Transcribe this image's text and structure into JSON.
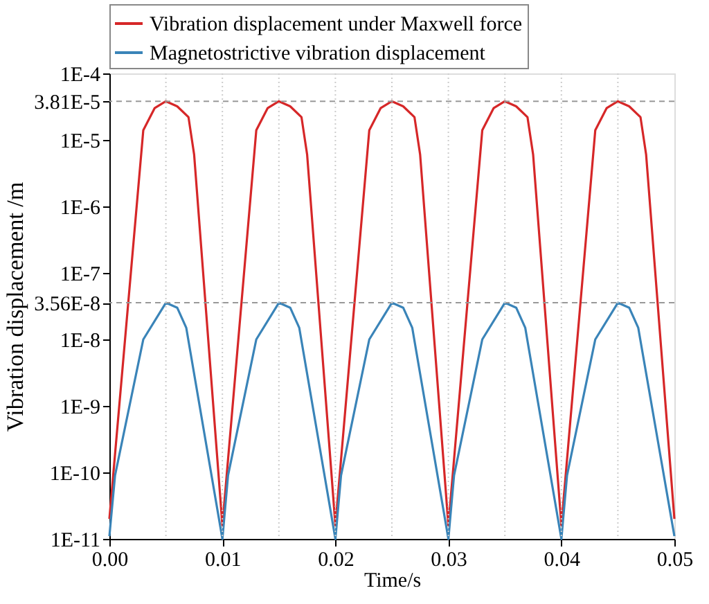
{
  "chart_data": {
    "type": "line",
    "xlabel": "Time/s",
    "ylabel": "Vibration displacement /m",
    "log": "y",
    "grid": false,
    "legend": "top",
    "line_style": "solid",
    "marker": "none",
    "x": [
      0,
      0.003,
      0.004,
      0.005,
      0.006,
      0.007,
      0.0075,
      0.01,
      0.013,
      0.014,
      0.015,
      0.016,
      0.017,
      0.0175,
      0.02,
      0.023,
      0.024,
      0.025,
      0.026,
      0.027,
      0.0275,
      0.03,
      0.033,
      0.034,
      0.035,
      0.036,
      0.037,
      0.0375,
      0.04,
      0.043,
      0.044,
      0.045,
      0.046,
      0.047,
      0.0475,
      0.05
    ],
    "series": [
      {
        "name": "Vibration displacement under Maxwell force",
        "color": "#d62728",
        "values": [
          2e-11,
          1.4e-05,
          3e-05,
          3.81e-05,
          3.2e-05,
          2.2e-05,
          6e-06,
          1.6e-11,
          1.4e-05,
          3e-05,
          3.81e-05,
          3.2e-05,
          2.2e-05,
          6e-06,
          1.6e-11,
          1.4e-05,
          3e-05,
          3.81e-05,
          3.2e-05,
          2.2e-05,
          6e-06,
          1.6e-11,
          1.4e-05,
          3e-05,
          3.81e-05,
          3.2e-05,
          2.2e-05,
          6e-06,
          1.6e-11,
          1.4e-05,
          3e-05,
          3.81e-05,
          3.2e-05,
          2.2e-05,
          6e-06,
          2e-11
        ]
      },
      {
        "name": "Magnetostrictive vibration displacement",
        "color": "#3a84b8",
        "x": [
          0,
          0.0005,
          0.003,
          0.005,
          0.006,
          0.0068,
          0.01,
          0.0105,
          0.013,
          0.015,
          0.016,
          0.0168,
          0.02,
          0.0205,
          0.023,
          0.025,
          0.026,
          0.0268,
          0.03,
          0.0305,
          0.033,
          0.035,
          0.036,
          0.0368,
          0.04,
          0.0405,
          0.043,
          0.045,
          0.046,
          0.0468,
          0.05
        ],
        "values": [
          1.1e-11,
          9e-11,
          1e-08,
          3.56e-08,
          3e-08,
          1.5e-08,
          1e-11,
          9e-11,
          1e-08,
          3.56e-08,
          3e-08,
          1.5e-08,
          1e-11,
          9e-11,
          1e-08,
          3.56e-08,
          3e-08,
          1.5e-08,
          1e-11,
          9e-11,
          1e-08,
          3.56e-08,
          3e-08,
          1.5e-08,
          1e-11,
          9e-11,
          1e-08,
          3.56e-08,
          3e-08,
          1.5e-08,
          1.1e-11
        ]
      }
    ],
    "xlim": [
      0,
      0.05
    ],
    "xticks": [
      {
        "value": 0,
        "label": "0.00"
      },
      {
        "value": 0.01,
        "label": "0.01"
      },
      {
        "value": 0.02,
        "label": "0.02"
      },
      {
        "value": 0.03,
        "label": "0.03"
      },
      {
        "value": 0.04,
        "label": "0.04"
      },
      {
        "value": 0.05,
        "label": "0.05"
      }
    ],
    "ylim": [
      1e-11,
      0.0001
    ],
    "yticks": [
      {
        "value": 0.0001,
        "label": "1E-4"
      },
      {
        "value": 3.81e-05,
        "label": "3.81E-5"
      },
      {
        "value": 1e-05,
        "label": "1E-5"
      },
      {
        "value": 1e-06,
        "label": "1E-6"
      },
      {
        "value": 1e-07,
        "label": "1E-7"
      },
      {
        "value": 3.56e-08,
        "label": "3.56E-8"
      },
      {
        "value": 1e-08,
        "label": "1E-8"
      },
      {
        "value": 1e-09,
        "label": "1E-9"
      },
      {
        "value": 1e-10,
        "label": "1E-10"
      },
      {
        "value": 1e-11,
        "label": "1E-11"
      }
    ],
    "ref_lines": [
      {
        "axis": "y",
        "value": 3.81e-05,
        "line_style": "dashed",
        "color": "#999999"
      },
      {
        "axis": "y",
        "value": 3.56e-08,
        "line_style": "dashed",
        "color": "#999999"
      },
      {
        "axis": "x",
        "value": 0.005,
        "line_style": "dotted",
        "color": "#cccccc"
      },
      {
        "axis": "x",
        "value": 0.01,
        "line_style": "dotted",
        "color": "#cccccc"
      },
      {
        "axis": "x",
        "value": 0.015,
        "line_style": "dotted",
        "color": "#cccccc"
      },
      {
        "axis": "x",
        "value": 0.02,
        "line_style": "dotted",
        "color": "#cccccc"
      },
      {
        "axis": "x",
        "value": 0.025,
        "line_style": "dotted",
        "color": "#cccccc"
      },
      {
        "axis": "x",
        "value": 0.03,
        "line_style": "dotted",
        "color": "#cccccc"
      },
      {
        "axis": "x",
        "value": 0.035,
        "line_style": "dotted",
        "color": "#cccccc"
      },
      {
        "axis": "x",
        "value": 0.04,
        "line_style": "dotted",
        "color": "#cccccc"
      },
      {
        "axis": "x",
        "value": 0.045,
        "line_style": "dotted",
        "color": "#cccccc"
      }
    ]
  }
}
